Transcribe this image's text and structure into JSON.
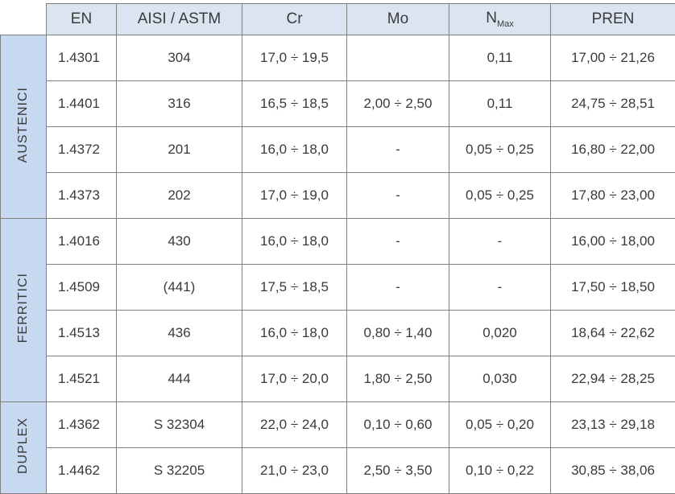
{
  "header": {
    "columns": [
      "EN",
      "AISI / ASTM",
      "Cr",
      "Mo",
      {
        "main": "N",
        "sub": "Max"
      },
      "PREN"
    ]
  },
  "groups": [
    {
      "label": "AUSTENICI",
      "rows": [
        [
          "1.4301",
          "304",
          "17,0 ÷ 19,5",
          null,
          "0,11",
          "17,00 ÷ 21,26"
        ],
        [
          "1.4401",
          "316",
          "16,5 ÷ 18,5",
          "2,00 ÷ 2,50",
          "0,11",
          "24,75 ÷ 28,51"
        ],
        [
          "1.4372",
          "201",
          "16,0 ÷ 18,0",
          "-",
          "0,05 ÷ 0,25",
          "16,80 ÷ 22,00"
        ],
        [
          "1.4373",
          "202",
          "17,0 ÷ 19,0",
          "-",
          "0,05 ÷ 0,25",
          "17,80 ÷ 23,00"
        ]
      ]
    },
    {
      "label": "FERRITICI",
      "rows": [
        [
          "1.4016",
          "430",
          "16,0 ÷ 18,0",
          "-",
          "-",
          "16,00 ÷ 18,00"
        ],
        [
          "1.4509",
          "(441)",
          "17,5 ÷ 18,5",
          "-",
          "-",
          "17,50 ÷ 18,50"
        ],
        [
          "1.4513",
          "436",
          "16,0 ÷ 18,0",
          "0,80 ÷ 1,40",
          "0,020",
          "18,64 ÷ 22,62"
        ],
        [
          "1.4521",
          "444",
          "17,0 ÷ 20,0",
          "1,80 ÷ 2,50",
          "0,030",
          "22,94 ÷ 28,25"
        ]
      ]
    },
    {
      "label": "DUPLEX",
      "rows": [
        [
          "1.4362",
          "S 32304",
          "22,0 ÷ 24,0",
          "0,10 ÷ 0,60",
          "0,05 ÷ 0,20",
          "23,13 ÷ 29,18"
        ],
        [
          "1.4462",
          "S 32205",
          "21,0 ÷ 23,0",
          "2,50 ÷ 3,50",
          "0,10 ÷ 0,22",
          "30,85 ÷ 38,06"
        ]
      ]
    }
  ]
}
